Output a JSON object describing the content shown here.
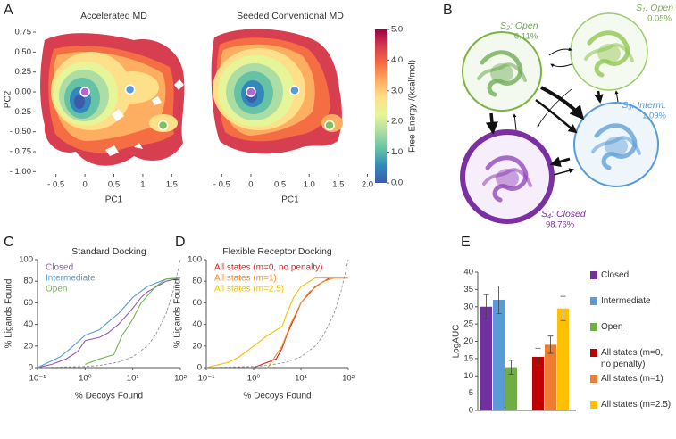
{
  "chart_data": [
    {
      "type": "contour",
      "panel": "A",
      "title": "Accelerated MD",
      "xlabel": "PC1",
      "ylabel": "PC2",
      "xlim": [
        -0.85,
        1.85
      ],
      "ylim": [
        -1.03,
        0.84
      ],
      "xticks": [
        {
          "value": -0.5,
          "label": "- 0.5"
        },
        0,
        0.5,
        1,
        1.5
      ],
      "yticks": [
        0.75,
        {
          "value": 0.5,
          "label": "0.50"
        },
        0.25,
        {
          "value": 0,
          "label": "0.00"
        },
        {
          "value": -0.25,
          "label": "- 0.25"
        },
        {
          "value": -0.5,
          "label": "- 0.50"
        },
        {
          "value": -0.75,
          "label": "- 0.75"
        },
        {
          "value": -1,
          "label": "- 1.00"
        }
      ],
      "x": [
        0,
        0.78,
        1.35
      ],
      "values": [
        0,
        0.03,
        -0.42
      ],
      "colors": [
        "#b565d0",
        "#5b9bd5",
        "#7cc35a"
      ]
    },
    {
      "type": "contour",
      "title": "Seeded Conventional MD",
      "xlabel": "PC1",
      "xlim": [
        -0.75,
        2.1
      ],
      "ylim": [
        -1.03,
        0.84
      ],
      "xticks": [
        {
          "value": -0.5,
          "label": "- 0.5"
        },
        0,
        0.5,
        {
          "value": 1,
          "label": "1.0"
        },
        1.5,
        {
          "value": 2,
          "label": "2.0"
        }
      ],
      "x": [
        0,
        0.75,
        1.35
      ],
      "values": [
        0,
        0.02,
        -0.42
      ],
      "colors": [
        "#b565d0",
        "#5b9bd5",
        "#7cc35a"
      ],
      "colorbar": {
        "label": "Free Energy /(kcal/mol)",
        "lim": [
          0,
          5
        ],
        "ticks": [
          {
            "value": 0,
            "label": "0.0"
          },
          {
            "value": 1,
            "label": "1.0"
          },
          {
            "value": 2,
            "label": "2.0"
          },
          {
            "value": 3,
            "label": "3.0"
          },
          {
            "value": 4,
            "label": "4.0"
          },
          {
            "value": 5,
            "label": "5.0"
          }
        ],
        "colors": [
          "#3f5aa8",
          "#3288bd",
          "#66c2a5",
          "#abdda4",
          "#e6f598",
          "#fee08b",
          "#fdae61",
          "#f46d43",
          "#d53e4f",
          "#9e0142"
        ]
      }
    },
    {
      "type": "line",
      "panel": "C",
      "title": "Standard Docking",
      "xlabel": "% Decoys Found",
      "ylabel": "% Ligands Found",
      "xscale": "log",
      "xlim": [
        0.1,
        100
      ],
      "ylim": [
        0,
        100
      ],
      "xticks": [
        {
          "value": 0.1,
          "label": "10⁻¹"
        },
        {
          "value": 1,
          "label": "10⁰"
        },
        {
          "value": 10,
          "label": "10¹"
        },
        {
          "value": 100,
          "label": "10²"
        }
      ],
      "yticks": [
        0,
        20,
        40,
        60,
        80,
        100
      ],
      "legend": "upper left",
      "series": [
        {
          "name": "Closed",
          "color": "#8e5bbf",
          "x": [
            0.1,
            0.2,
            0.4,
            0.7,
            1,
            2,
            3,
            5,
            8,
            10,
            15,
            20,
            50,
            100
          ],
          "values": [
            0,
            3,
            8,
            15,
            25,
            28,
            32,
            40,
            50,
            55,
            65,
            70,
            80,
            83
          ]
        },
        {
          "name": "Intermediate",
          "color": "#5b9bd5",
          "x": [
            0.1,
            0.3,
            0.5,
            1,
            2,
            3,
            5,
            8,
            10,
            20,
            50,
            100
          ],
          "values": [
            0,
            10,
            18,
            30,
            35,
            42,
            50,
            60,
            65,
            75,
            82,
            83
          ]
        },
        {
          "name": "Open",
          "color": "#70b84a",
          "x": [
            1,
            2,
            4,
            6,
            8,
            10,
            15,
            30,
            50,
            100
          ],
          "values": [
            3,
            8,
            12,
            30,
            38,
            45,
            60,
            75,
            82,
            83
          ]
        },
        {
          "color": "#888888",
          "dash": true,
          "x": [
            0.1,
            1,
            2,
            5,
            10,
            20,
            30,
            50,
            70,
            100
          ],
          "values": [
            0.1,
            1,
            2,
            5,
            10,
            20,
            30,
            50,
            70,
            100
          ]
        }
      ]
    },
    {
      "type": "line",
      "panel": "D",
      "title": "Flexible Receptor Docking",
      "xlabel": "% Decoys Found",
      "ylabel": "% Ligands Found",
      "xscale": "log",
      "xlim": [
        0.1,
        100
      ],
      "ylim": [
        0,
        100
      ],
      "xticks": [
        {
          "value": 0.1,
          "label": "10⁻¹"
        },
        {
          "value": 1,
          "label": "10⁰"
        },
        {
          "value": 10,
          "label": "10¹"
        },
        {
          "value": 100,
          "label": "10²"
        }
      ],
      "yticks": [
        0,
        20,
        40,
        60,
        80,
        100
      ],
      "legend": "upper left",
      "series": [
        {
          "name": "All states (m=0, no penalty)",
          "color": "#d62728",
          "x": [
            1,
            3,
            4,
            5,
            8,
            10,
            20,
            40,
            100
          ],
          "values": [
            0,
            8,
            18,
            30,
            50,
            60,
            75,
            83,
            83
          ]
        },
        {
          "name": "All states (m=1)",
          "color": "#f28e2b",
          "x": [
            2,
            4,
            6,
            10,
            15,
            30,
            50,
            100
          ],
          "values": [
            0,
            20,
            40,
            60,
            70,
            80,
            83,
            83
          ]
        },
        {
          "name": "All states (m=2.5)",
          "color": "#f5c000",
          "x": [
            0.1,
            0.3,
            0.5,
            1,
            2,
            4,
            5,
            7,
            10,
            20,
            100
          ],
          "values": [
            0,
            5,
            10,
            20,
            30,
            38,
            50,
            65,
            75,
            83,
            83
          ]
        },
        {
          "color": "#888888",
          "dash": true,
          "x": [
            0.1,
            1,
            2,
            5,
            10,
            20,
            30,
            50,
            70,
            100
          ],
          "values": [
            0.1,
            1,
            2,
            5,
            10,
            20,
            30,
            50,
            70,
            100
          ]
        }
      ]
    },
    {
      "type": "bar",
      "panel": "E",
      "ylabel": "LogAUC",
      "ylim": [
        0,
        40
      ],
      "yticks": [
        0,
        5,
        10,
        15,
        20,
        25,
        30,
        35,
        40
      ],
      "legend": "right",
      "series": [
        {
          "name": "Closed",
          "color": "#7030a0",
          "values": [
            30
          ],
          "errors": [
            3.5
          ]
        },
        {
          "name": "Intermediate",
          "color": "#5b9bd5",
          "values": [
            32
          ],
          "errors": [
            4
          ]
        },
        {
          "name": "Open",
          "color": "#70ad47",
          "values": [
            12.5
          ],
          "errors": [
            2
          ]
        },
        {
          "name": "All states (m=0, no penalty)",
          "color": "#c00000",
          "values": [
            15.5
          ],
          "errors": [
            2.5
          ]
        },
        {
          "name": "All states (m=1)",
          "color": "#ed7d31",
          "values": [
            19
          ],
          "errors": [
            2.5
          ]
        },
        {
          "name": "All states (m=2.5)",
          "color": "#ffc000",
          "values": [
            29.5
          ],
          "errors": [
            3.5
          ]
        }
      ]
    }
  ],
  "diagram": {
    "panel": "B",
    "nodes": [
      {
        "label": "S₂: Open",
        "population": "0.11%"
      },
      {
        "label": "S₁: Open",
        "population": "0.05%"
      },
      {
        "label": "S₃: Interm.",
        "population": "1.09%"
      },
      {
        "label": "S₄: Closed",
        "population": "98.76%"
      }
    ]
  }
}
